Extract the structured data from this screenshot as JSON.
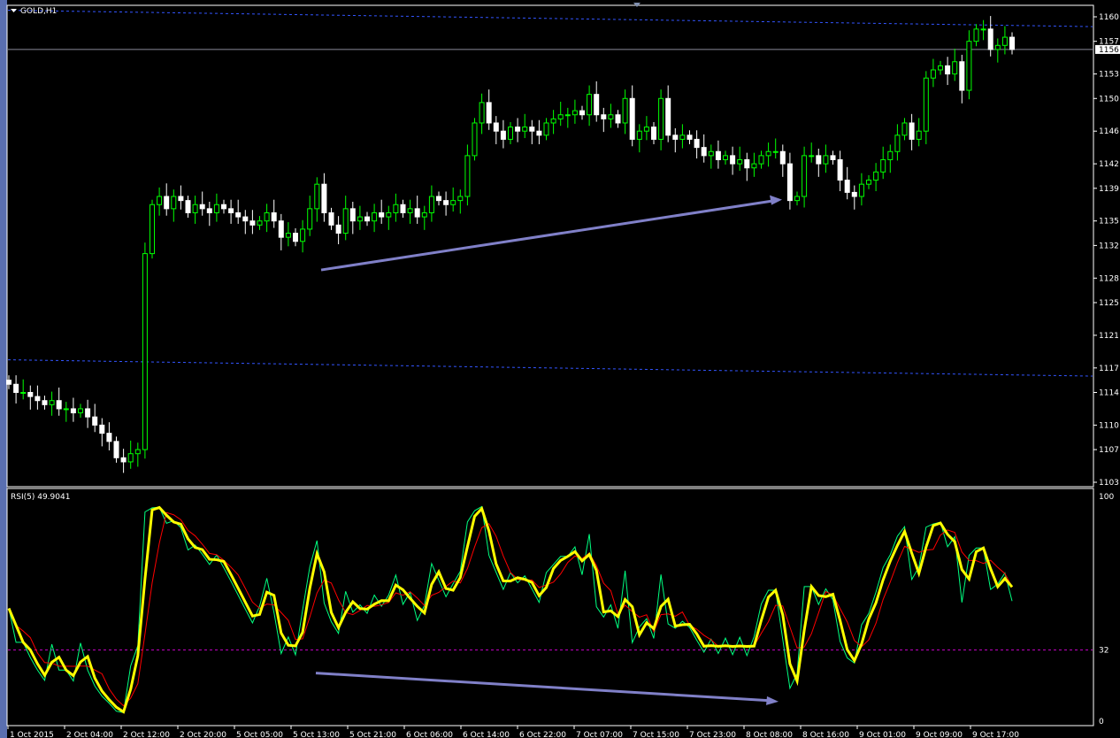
{
  "chart": {
    "symbol_label": "GOLD,H1",
    "current_price": "1156",
    "price_ticks": [
      "1160",
      "1157",
      "1153",
      "1150",
      "1146",
      "1142",
      "1139",
      "1135",
      "1132",
      "1128",
      "1125",
      "1121",
      "1117",
      "1114",
      "1110",
      "1107",
      "1103"
    ],
    "colors": {
      "bull": "#000000",
      "bull_border": "#00ff00",
      "bear": "#ffffff",
      "band": "#3355ff",
      "arrow": "#8080c8",
      "rsi_raw": "#00ff80",
      "rsi_main": "#ffff00",
      "rsi_slow": "#ff0000",
      "level": "#c000c0"
    }
  },
  "chart_data": {
    "type": "candlestick",
    "closes": [
      1115,
      1114,
      1114,
      1113.5,
      1113,
      1112.5,
      1113,
      1112,
      1112,
      1111.5,
      1112,
      1111,
      1110,
      1109,
      1108,
      1106,
      1105.5,
      1106.5,
      1107,
      1131,
      1137,
      1138,
      1136.5,
      1138,
      1137.5,
      1136,
      1137,
      1136.5,
      1136,
      1137,
      1136.5,
      1136,
      1135.5,
      1135,
      1134.5,
      1135,
      1136,
      1135,
      1133,
      1133.5,
      1132.5,
      1134,
      1136.5,
      1139.5,
      1136,
      1134.5,
      1133.5,
      1136.5,
      1135,
      1135.5,
      1135,
      1136,
      1135.5,
      1136,
      1137,
      1136,
      1136.5,
      1135.5,
      1136,
      1138,
      1137.5,
      1137,
      1137.5,
      1138,
      1143,
      1147,
      1149.5,
      1147,
      1146,
      1145,
      1146.5,
      1146,
      1146.5,
      1146,
      1145.5,
      1147,
      1147.5,
      1148,
      1148,
      1148.5,
      1148,
      1150.5,
      1148,
      1147.5,
      1148,
      1147,
      1150,
      1145,
      1146,
      1146.5,
      1145,
      1150,
      1145.5,
      1145,
      1145.5,
      1145,
      1144,
      1143,
      1143.5,
      1142.5,
      1143,
      1142,
      1142.5,
      1141.5,
      1142,
      1143,
      1143.5,
      1143.5,
      1142,
      1137.5,
      1138,
      1143,
      1143,
      1142,
      1143,
      1142.5,
      1140,
      1138.5,
      1138,
      1139.5,
      1140,
      1141,
      1142.5,
      1143.5,
      1145.5,
      1147,
      1145,
      1146,
      1152.5,
      1153.5,
      1154,
      1153,
      1154.5,
      1151,
      1157,
      1158.5,
      1158.5,
      1156,
      1156.5,
      1157.5,
      1156
    ],
    "ylim": [
      1103,
      1160
    ],
    "upper_band": [
      1160.8,
      1158.8
    ],
    "lower_band": [
      1118,
      1116
    ],
    "time_labels": [
      "1 Oct 2015",
      "2 Oct 04:00",
      "2 Oct 12:00",
      "2 Oct 20:00",
      "5 Oct 05:00",
      "5 Oct 13:00",
      "5 Oct 21:00",
      "6 Oct 06:00",
      "6 Oct 14:00",
      "6 Oct 22:00",
      "7 Oct 07:00",
      "7 Oct 15:00",
      "7 Oct 23:00",
      "8 Oct 08:00",
      "8 Oct 16:00",
      "9 Oct 01:00",
      "9 Oct 09:00",
      "9 Oct 17:00"
    ],
    "indicator": {
      "label": "RSI(5) 49.9041",
      "period": 5,
      "ticks": [
        "100",
        "32",
        "0"
      ],
      "level": 32,
      "ylim": [
        0,
        100
      ]
    },
    "annotations": {
      "price_trendline": {
        "from_price": 1129,
        "to_price": 1137.5
      },
      "rsi_trendline": {
        "from_rsi": 22,
        "to_rsi": 10
      }
    }
  }
}
